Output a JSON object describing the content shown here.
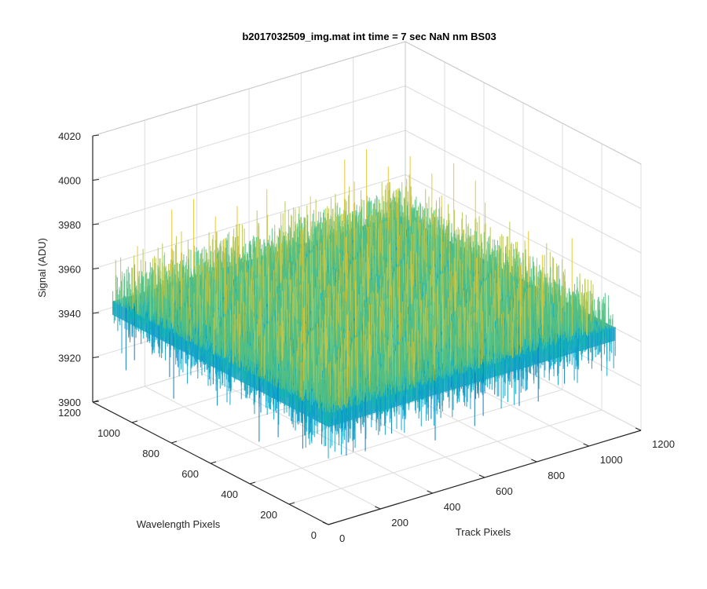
{
  "chart_data": {
    "type": "surface",
    "title": "b2017032509_img.mat int time = 7 sec  NaN nm BS03",
    "xlabel": "Track Pixels",
    "ylabel": "Wavelength Pixels",
    "zlabel": "Signal (ADU)",
    "xlim": [
      0,
      1200
    ],
    "ylim": [
      0,
      1200
    ],
    "zlim": [
      3900,
      4020
    ],
    "x_ticks": [
      0,
      200,
      400,
      600,
      800,
      1000,
      1200
    ],
    "y_ticks": [
      0,
      200,
      400,
      600,
      800,
      1000,
      1200
    ],
    "z_ticks": [
      3900,
      3920,
      3940,
      3960,
      3980,
      4000,
      4020
    ],
    "surface": {
      "x_range": [
        0,
        1100
      ],
      "y_range": [
        0,
        1100
      ],
      "mean": 3950,
      "min_approx": 3915,
      "max_approx": 3990
    },
    "grid": true,
    "colormap": "parula",
    "colors": [
      "#0072bd",
      "#0d9fc8",
      "#17b3b3",
      "#55bf83",
      "#b7c44e",
      "#e6c52c"
    ]
  }
}
